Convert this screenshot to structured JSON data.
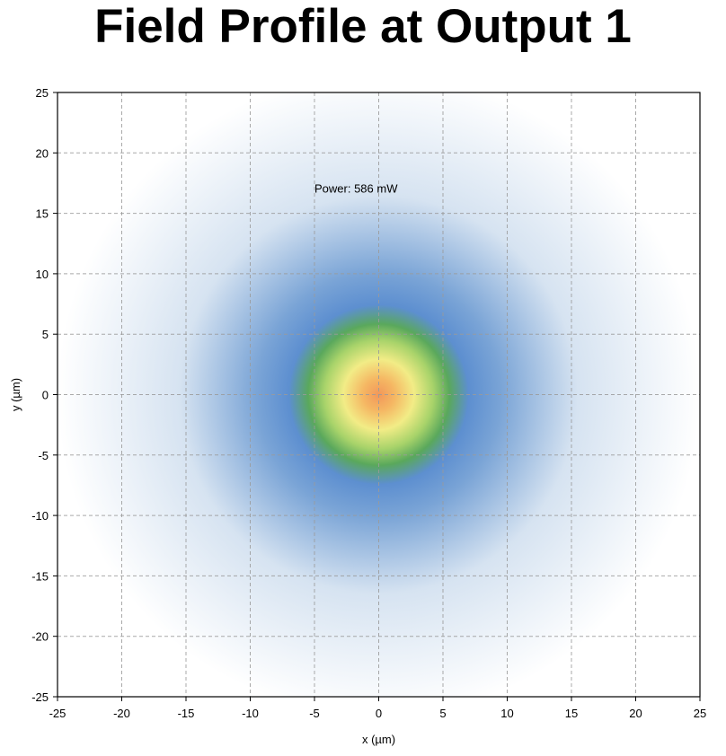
{
  "chart_data": {
    "type": "heatmap",
    "title": "Field Profile at Output 1",
    "xlabel": "x (µm)",
    "ylabel": "y (µm)",
    "xlim": [
      -25,
      25
    ],
    "ylim": [
      -25,
      25
    ],
    "x_ticks": [
      "-25",
      "-20",
      "-15",
      "-10",
      "-5",
      "0",
      "5",
      "10",
      "15",
      "20",
      "25"
    ],
    "y_ticks": [
      "25",
      "20",
      "15",
      "10",
      "5",
      "0",
      "-5",
      "-10",
      "-15",
      "-20",
      "-25"
    ],
    "grid": true,
    "annotation": "Power: 586 mW",
    "field": {
      "center_x": 0,
      "center_y": 0,
      "width_um": 6.5
    },
    "colormap": [
      "#ffffff",
      "#d6e3f1",
      "#7aa4d6",
      "#5d8fd0",
      "#5aa85c",
      "#a8d36a",
      "#f2ec86",
      "#f5b763",
      "#f2975a"
    ]
  }
}
